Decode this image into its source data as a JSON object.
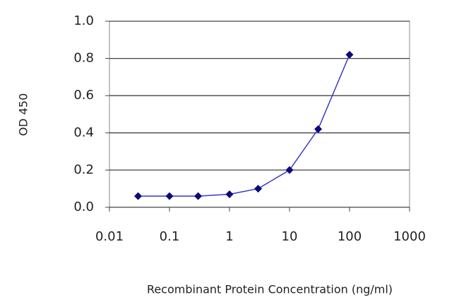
{
  "chart_data": {
    "type": "line",
    "x_label": "Recombinant Protein Concentration (ng/ml)",
    "y_label": "OD 450",
    "x": [
      0.03,
      0.1,
      0.3,
      1,
      3,
      10,
      30,
      100
    ],
    "series": [
      {
        "color": "#3a3ac8",
        "marker_color": "#0a0a7a",
        "values": [
          0.06,
          0.06,
          0.06,
          0.07,
          0.1,
          0.2,
          0.42,
          0.82
        ]
      }
    ],
    "xscale": "log",
    "xlim": [
      0.01,
      1000
    ],
    "xticks": [
      0.01,
      0.1,
      1,
      10,
      100,
      1000
    ],
    "ylim": [
      0,
      1
    ],
    "yticks": [
      {
        "value": 0,
        "label": "0.0"
      },
      0.2,
      0.4,
      0.6,
      0.8,
      {
        "value": 1,
        "label": "1.0"
      }
    ],
    "grid": true
  }
}
